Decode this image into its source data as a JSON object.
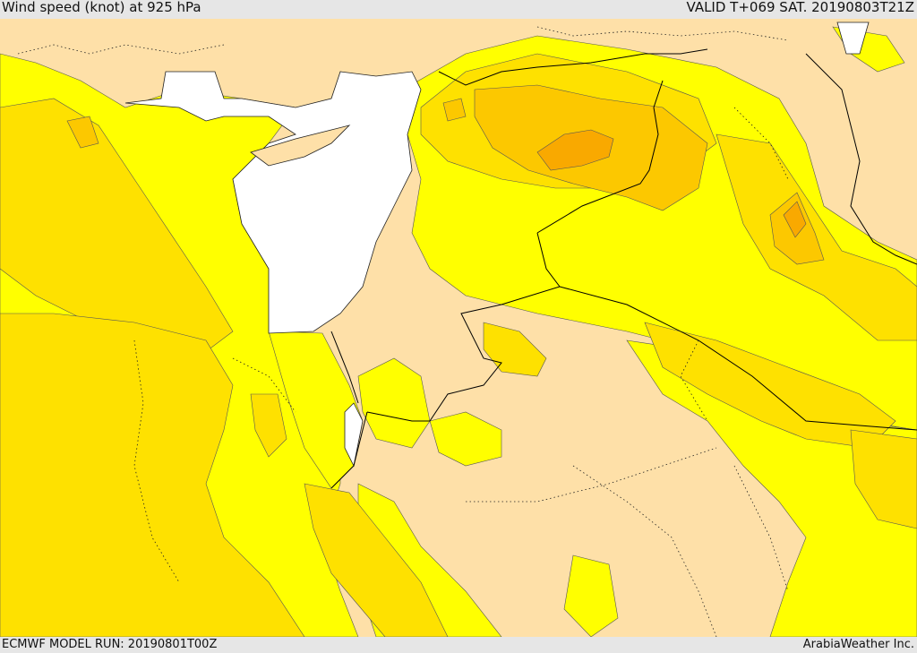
{
  "header": {
    "title": "Wind speed (knot) at 925 hPa",
    "valid": "VALID T+069 SAT. 20190803T21Z"
  },
  "footer": {
    "model_run": "ECMWF MODEL RUN: 20190801T00Z",
    "provider": "ArabiaWeather Inc."
  },
  "colors": {
    "sea": "#ffffff",
    "level_1": "#fee0a8",
    "level_2": "#ffff00",
    "level_3": "#fee100",
    "level_4": "#fcc800",
    "level_5": "#f9a900",
    "borders": "#000000",
    "frame": "#e6e6e6"
  }
}
